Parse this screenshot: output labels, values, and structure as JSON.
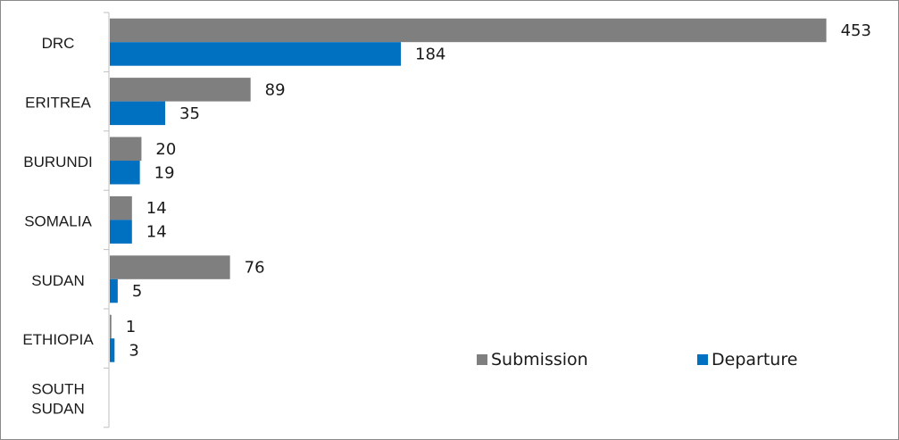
{
  "chart_data": {
    "type": "bar",
    "orientation": "horizontal",
    "categories": [
      "DRC",
      "ERITREA",
      "BURUNDI",
      "SOMALIA",
      "SUDAN",
      "ETHIOPIA",
      "SOUTH SUDAN"
    ],
    "series": [
      {
        "name": "Submission",
        "color": "#7f7f7f",
        "values": [
          453,
          89,
          20,
          14,
          76,
          1,
          null
        ]
      },
      {
        "name": "Departure",
        "color": "#0070c0",
        "values": [
          184,
          35,
          19,
          14,
          5,
          3,
          null
        ]
      }
    ],
    "xlim": [
      0,
      460
    ],
    "grid": false,
    "legend_position": "bottom-right"
  }
}
